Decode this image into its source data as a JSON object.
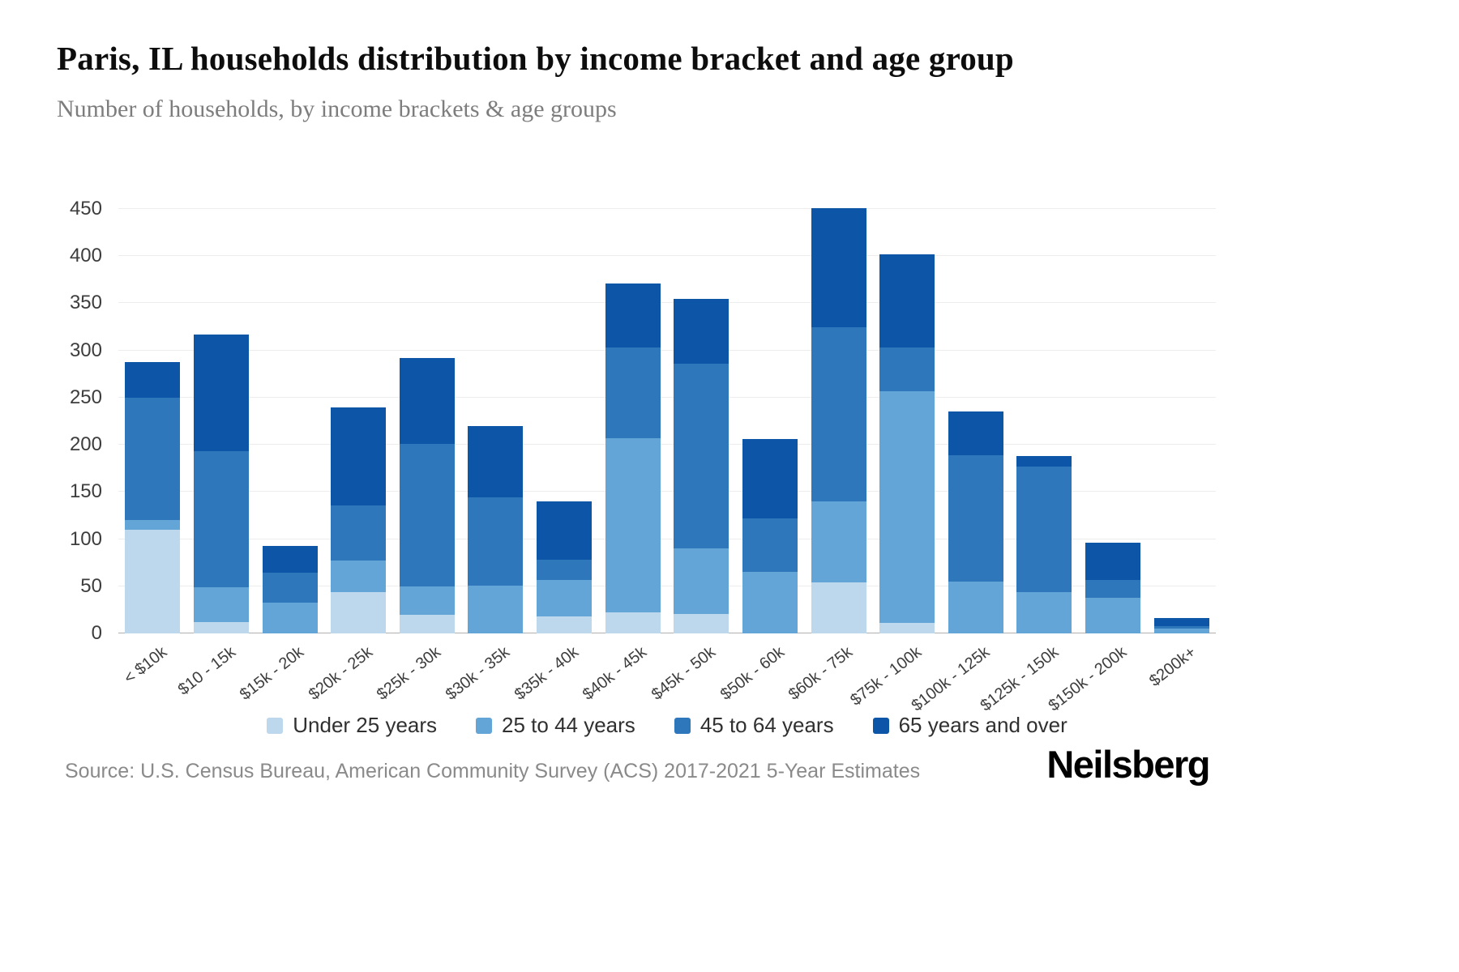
{
  "header": {
    "title": "Paris, IL households distribution by income bracket and age group",
    "subtitle": "Number of households, by income brackets & age groups"
  },
  "footer": {
    "source": "Source: U.S. Census Bureau, American Community Survey (ACS) 2017-2021 5-Year Estimates",
    "brand": "Neilsberg"
  },
  "chart_data": {
    "type": "bar",
    "stacked": true,
    "title": "Paris, IL households distribution by income bracket and age group",
    "xlabel": "",
    "ylabel": "Number of households",
    "ylim": [
      0,
      450
    ],
    "yticks": [
      0,
      50,
      100,
      150,
      200,
      250,
      300,
      350,
      400,
      450
    ],
    "grid": true,
    "legend_position": "bottom",
    "categories": [
      "< $10k",
      "$10 - 15k",
      "$15k - 20k",
      "$20k - 25k",
      "$25k - 30k",
      "$30k - 35k",
      "$35k - 40k",
      "$40k - 45k",
      "$45k - 50k",
      "$50k - 60k",
      "$60k - 75k",
      "$75k - 100k",
      "$100k - 125k",
      "$125k - 150k",
      "$150k - 200k",
      "$200k+"
    ],
    "series": [
      {
        "name": "Under 25 years",
        "color": "#bdd7ec",
        "values": [
          110,
          12,
          0,
          44,
          20,
          0,
          18,
          22,
          21,
          0,
          54,
          11,
          0,
          0,
          0,
          0
        ]
      },
      {
        "name": "25 to 44 years",
        "color": "#64a5d8",
        "values": [
          10,
          37,
          33,
          33,
          30,
          51,
          39,
          185,
          69,
          65,
          86,
          246,
          55,
          44,
          38,
          5
        ]
      },
      {
        "name": "45 to 64 years",
        "color": "#2e77bb",
        "values": [
          130,
          144,
          31,
          59,
          151,
          93,
          21,
          96,
          196,
          57,
          185,
          46,
          134,
          133,
          19,
          3
        ]
      },
      {
        "name": "65 years and over",
        "color": "#0d55a6",
        "values": [
          38,
          124,
          29,
          104,
          91,
          76,
          62,
          68,
          69,
          84,
          126,
          99,
          46,
          11,
          39,
          8
        ]
      }
    ],
    "totals": [
      288,
      317,
      93,
      240,
      292,
      220,
      140,
      371,
      355,
      206,
      451,
      402,
      235,
      188,
      96,
      16
    ]
  }
}
